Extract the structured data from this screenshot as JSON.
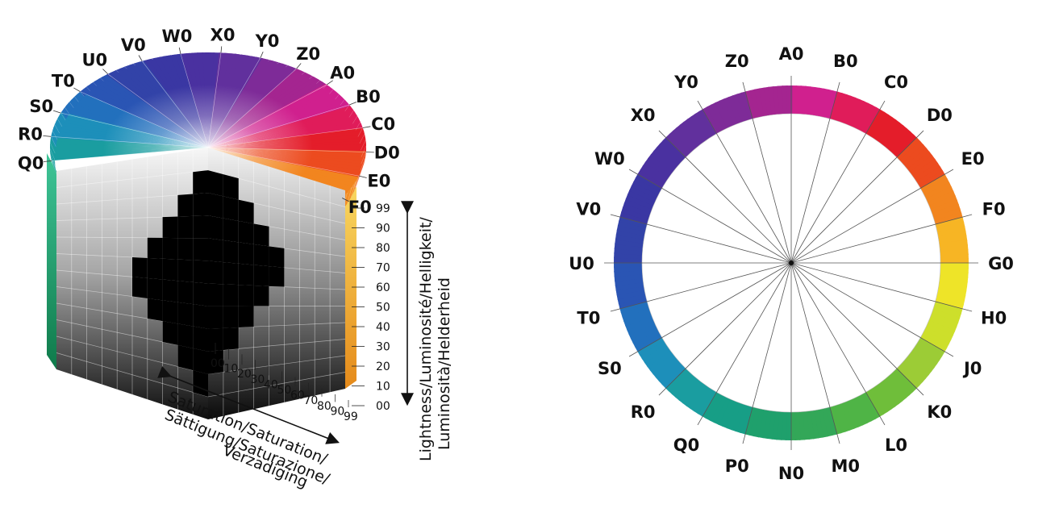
{
  "solid_hue_labels": [
    "Q0",
    "R0",
    "S0",
    "T0",
    "U0",
    "V0",
    "W0",
    "X0",
    "Y0",
    "Z0",
    "A0",
    "B0",
    "C0",
    "D0",
    "E0",
    "F0"
  ],
  "lightness_ticks": [
    "99",
    "90",
    "80",
    "70",
    "60",
    "50",
    "40",
    "30",
    "20",
    "10",
    "00"
  ],
  "saturation_ticks": [
    "00",
    "10",
    "20",
    "30",
    "40",
    "50",
    "60",
    "70",
    "80",
    "90",
    "99"
  ],
  "lightness_axis_line1": "Lightness/Luminosité/Helligkeit/",
  "lightness_axis_line2": "Luminosità/Helderheid",
  "saturation_axis_line1": "Saturation/Saturation/",
  "saturation_axis_line2": "Sättigung/Saturazione/",
  "saturation_axis_line3": "Verzadiging",
  "wheel_hue_labels": [
    "A0",
    "B0",
    "C0",
    "D0",
    "E0",
    "F0",
    "G0",
    "H0",
    "J0",
    "K0",
    "L0",
    "M0",
    "N0",
    "P0",
    "Q0",
    "R0",
    "S0",
    "T0",
    "U0",
    "V0",
    "W0",
    "X0",
    "Y0",
    "Z0"
  ],
  "colors": {
    "wheel_hues": [
      "#d0208e",
      "#e01c5a",
      "#e41d2a",
      "#ec4b1f",
      "#f2851f",
      "#f7b524",
      "#eee428",
      "#cddf2b",
      "#9ccc36",
      "#6fbe3a",
      "#4fb446",
      "#33a758",
      "#1fa06c",
      "#179e86",
      "#1a9da0",
      "#1d8fba",
      "#2270bd",
      "#2a55b4",
      "#3243a8",
      "#3a37a3",
      "#4a31a0",
      "#61309d",
      "#7e2b98",
      "#a42590"
    ],
    "grey_light": "#f2f2f2",
    "grey_dark": "#101010"
  }
}
